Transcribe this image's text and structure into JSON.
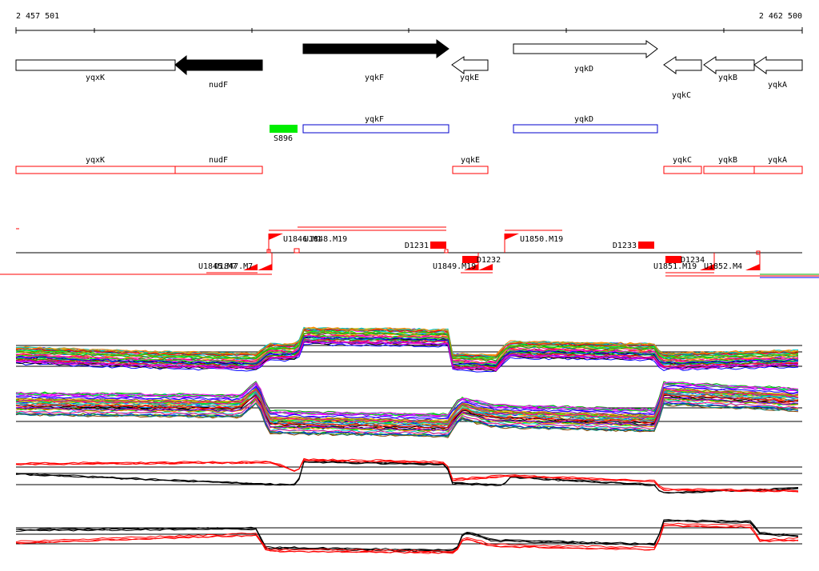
{
  "ruler": {
    "start_label": "2 457 501",
    "end_label": "2 462 500"
  },
  "genes_top": [
    {
      "name": "yqxK",
      "style": "outline",
      "dir": "none"
    },
    {
      "name": "nudF",
      "style": "filled",
      "dir": "left"
    },
    {
      "name": "yqkF",
      "style": "filled",
      "dir": "right"
    },
    {
      "name": "yqkE",
      "style": "outline",
      "dir": "left"
    },
    {
      "name": "yqkD",
      "style": "outline",
      "dir": "right"
    },
    {
      "name": "yqkC",
      "style": "outline",
      "dir": "left"
    },
    {
      "name": "yqkB",
      "style": "outline",
      "dir": "left"
    },
    {
      "name": "yqkA",
      "style": "outline",
      "dir": "left"
    }
  ],
  "features_mid": [
    {
      "name": "S896",
      "color": "#00ee00",
      "kind": "filled"
    },
    {
      "name": "yqkF",
      "color": "#0000cc",
      "kind": "outline"
    },
    {
      "name": "yqkD",
      "color": "#0000cc",
      "kind": "outline"
    }
  ],
  "features_red": [
    {
      "name": "yqxK"
    },
    {
      "name": "nudF"
    },
    {
      "name": "yqkE"
    },
    {
      "name": "yqkC"
    },
    {
      "name": "yqkB"
    },
    {
      "name": "yqkA"
    }
  ],
  "upper_labels": [
    {
      "name": "U1846.M1"
    },
    {
      "name": "U1848.M19"
    },
    {
      "name": "D1231"
    },
    {
      "name": "U1850.M19"
    },
    {
      "name": "D1233"
    }
  ],
  "lower_labels": [
    {
      "name": "U1845.M7"
    },
    {
      "name": "D1847.M7"
    },
    {
      "name": "U1849.M19"
    },
    {
      "name": "D1232"
    },
    {
      "name": "U1851.M19"
    },
    {
      "name": "D1234"
    },
    {
      "name": "U1852.M4"
    }
  ],
  "colors": {
    "accent_red": "#ff0000",
    "outline_blue": "#0000cc",
    "highlight_green": "#00ee00",
    "profile_palette": [
      "#ff0000",
      "#00aa00",
      "#0000ff",
      "#ff00ff",
      "#00cccc",
      "#ff8800",
      "#8800ff",
      "#00ff00",
      "#888800",
      "#ff0088",
      "#0088ff",
      "#884400",
      "#000000",
      "#ffcc00",
      "#008888"
    ]
  }
}
